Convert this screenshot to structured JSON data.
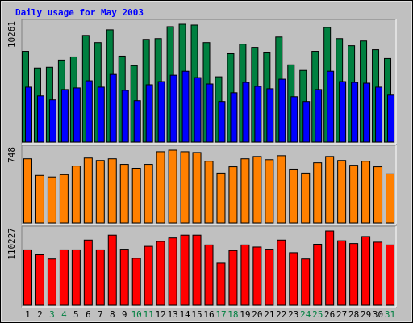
{
  "title": "Daily usage for May 2003",
  "chart_data": [
    {
      "type": "bar",
      "yticks": [
        10261
      ],
      "ylim": [
        0,
        10261
      ],
      "series": [
        {
          "color": "#008040",
          "values": [
            7904,
            6448,
            6517,
            7141,
            7418,
            9290,
            8666,
            9776,
            7488,
            6656,
            8944,
            9013,
            10053,
            10261,
            10192,
            8666,
            5685,
            7696,
            8528,
            8250,
            7765,
            9152,
            6725,
            6240,
            7904,
            9984,
            9013,
            8389,
            8805,
            8042,
            7280
          ]
        },
        {
          "color": "#0000ff",
          "values": [
            4784,
            4021,
            3675,
            4576,
            4715,
            5339,
            4784,
            5893,
            4507,
            3605,
            4992,
            5269,
            5824,
            6171,
            5616,
            5061,
            3536,
            4299,
            5200,
            4853,
            4645,
            5477,
            3952,
            3536,
            4576,
            6171,
            5269,
            5200,
            5131,
            4784,
            4091
          ]
        }
      ]
    },
    {
      "type": "bar",
      "yticks": [
        748
      ],
      "ylim": [
        0,
        748
      ],
      "series": [
        {
          "color": "#ff8000",
          "values": [
            659,
            488,
            472,
            496,
            585,
            667,
            642,
            659,
            602,
            561,
            602,
            732,
            748,
            732,
            724,
            634,
            512,
            577,
            659,
            683,
            650,
            691,
            553,
            512,
            618,
            683,
            642,
            593,
            634,
            577,
            504
          ]
        }
      ]
    },
    {
      "type": "bar",
      "yticks": [
        110227
      ],
      "ylim": [
        0,
        110227
      ],
      "categories": [
        "1",
        "2",
        "3",
        "4",
        "5",
        "6",
        "7",
        "8",
        "9",
        "10",
        "11",
        "12",
        "13",
        "14",
        "15",
        "16",
        "17",
        "18",
        "19",
        "20",
        "21",
        "22",
        "23",
        "24",
        "25",
        "26",
        "27",
        "28",
        "29",
        "30",
        "31"
      ],
      "category_colors": [
        "#000000",
        "#000000",
        "#008040",
        "#008040",
        "#000000",
        "#000000",
        "#000000",
        "#000000",
        "#000000",
        "#008040",
        "#008040",
        "#000000",
        "#000000",
        "#000000",
        "#000000",
        "#000000",
        "#008040",
        "#008040",
        "#000000",
        "#000000",
        "#000000",
        "#000000",
        "#000000",
        "#008040",
        "#008040",
        "#000000",
        "#000000",
        "#000000",
        "#000000",
        "#000000",
        "#008040"
      ],
      "series": [
        {
          "color": "#ff0000",
          "values": [
            82152,
            74873,
            68633,
            82152,
            82152,
            96711,
            82152,
            103990,
            83192,
            69673,
            87352,
            94631,
            99830,
            103990,
            103990,
            89431,
            62394,
            81112,
            89431,
            86312,
            83192,
            96711,
            77993,
            68633,
            90471,
            110227,
            95671,
            91511,
            101910,
            93591,
            89431
          ]
        }
      ]
    }
  ]
}
